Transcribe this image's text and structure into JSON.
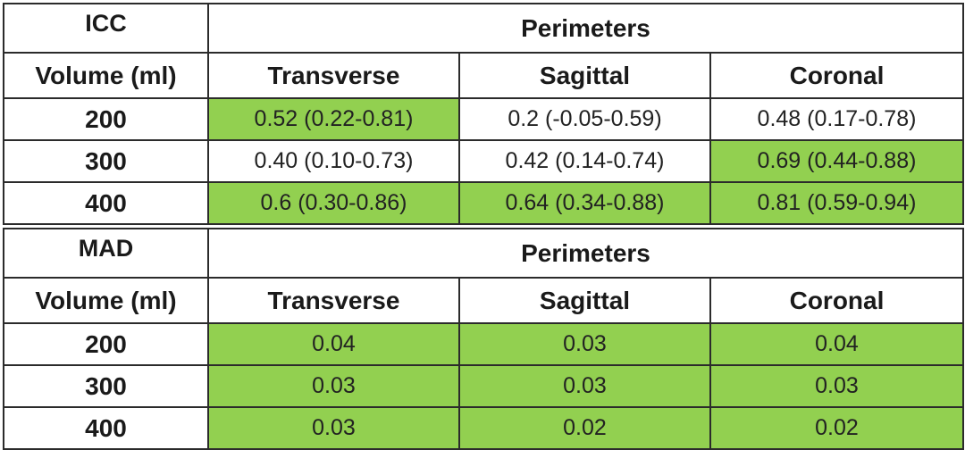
{
  "colors": {
    "highlight": "#92d050",
    "border": "#2b2b2b"
  },
  "tables": [
    {
      "name": "ICC",
      "group_header": "Perimeters",
      "row_header": "Volume (ml)",
      "columns": [
        "Transverse",
        "Sagittal",
        "Coronal"
      ],
      "rows": [
        {
          "volume": "200",
          "cells": [
            {
              "value": "0.52 (0.22-0.81)",
              "highlighted": true
            },
            {
              "value": "0.2 (-0.05-0.59)",
              "highlighted": false
            },
            {
              "value": "0.48 (0.17-0.78)",
              "highlighted": false
            }
          ]
        },
        {
          "volume": "300",
          "cells": [
            {
              "value": "0.40 (0.10-0.73)",
              "highlighted": false
            },
            {
              "value": "0.42 (0.14-0.74)",
              "highlighted": false
            },
            {
              "value": "0.69 (0.44-0.88)",
              "highlighted": true
            }
          ]
        },
        {
          "volume": "400",
          "cells": [
            {
              "value": "0.6 (0.30-0.86)",
              "highlighted": true
            },
            {
              "value": "0.64 (0.34-0.88)",
              "highlighted": true
            },
            {
              "value": "0.81 (0.59-0.94)",
              "highlighted": true
            }
          ]
        }
      ]
    },
    {
      "name": "MAD",
      "group_header": "Perimeters",
      "row_header": "Volume (ml)",
      "columns": [
        "Transverse",
        "Sagittal",
        "Coronal"
      ],
      "rows": [
        {
          "volume": "200",
          "cells": [
            {
              "value": "0.04",
              "highlighted": true
            },
            {
              "value": "0.03",
              "highlighted": true
            },
            {
              "value": "0.04",
              "highlighted": true
            }
          ]
        },
        {
          "volume": "300",
          "cells": [
            {
              "value": "0.03",
              "highlighted": true
            },
            {
              "value": "0.03",
              "highlighted": true
            },
            {
              "value": "0.03",
              "highlighted": true
            }
          ]
        },
        {
          "volume": "400",
          "cells": [
            {
              "value": "0.03",
              "highlighted": true
            },
            {
              "value": "0.02",
              "highlighted": true
            },
            {
              "value": "0.02",
              "highlighted": true
            }
          ]
        }
      ]
    }
  ]
}
